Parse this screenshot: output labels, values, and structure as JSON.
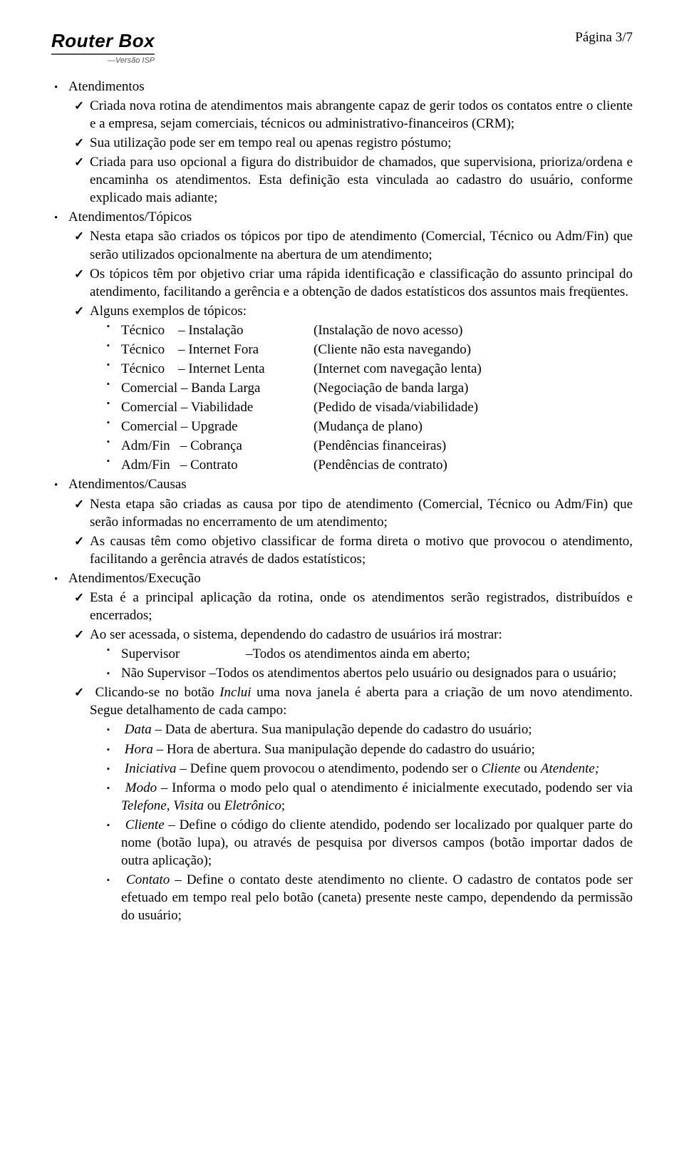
{
  "header": {
    "logo_main": "Router Box",
    "logo_sub": "—Versão ISP",
    "page_num": "Página 3/7"
  },
  "s1": {
    "title": "Atendimentos",
    "p1a": "Criada nova rotina de atendimentos mais abrangente capaz de gerir todos os contatos entre o cliente e a empresa, sejam comerciais, técnicos ou administrativo-financeiros (CRM);",
    "p2a": "Sua utilização pode ser em tempo real ou apenas registro póstumo;",
    "p3a": "Criada para uso opcional a figura do distribuidor de chamados, que supervisiona, prioriza/ordena e encaminha os atendimentos. Esta definição esta vinculada ao cadastro do usuário, conforme explicado mais adiante;"
  },
  "s2": {
    "title": "Atendimentos/Tópicos",
    "p1": "Nesta etapa são criados os tópicos por tipo de atendimento (Comercial, Técnico ou Adm/Fin) que serão utilizados opcionalmente na abertura de um atendimento;",
    "p2": "Os tópicos têm por objetivo criar uma rápida identificação e classificação do assunto principal do atendimento, facilitando a gerência e a obtenção de dados estatísticos dos assuntos mais freqüentes.",
    "p3": "Alguns exemplos de tópicos:",
    "ex": [
      {
        "a": "Técnico    – Instalação",
        "b": "(Instalação de novo acesso)"
      },
      {
        "a": "Técnico    – Internet Fora",
        "b": "(Cliente não esta navegando)"
      },
      {
        "a": "Técnico    – Internet Lenta",
        "b": "(Internet com navegação lenta)"
      },
      {
        "a": "Comercial – Banda Larga",
        "b": "(Negociação de banda larga)"
      },
      {
        "a": "Comercial – Viabilidade",
        "b": "(Pedido de visada/viabilidade)"
      },
      {
        "a": "Comercial – Upgrade",
        "b": "(Mudança de plano)"
      },
      {
        "a": "Adm/Fin   – Cobrança",
        "b": "(Pendências financeiras)"
      },
      {
        "a": "Adm/Fin   – Contrato",
        "b": "(Pendências de contrato)"
      }
    ]
  },
  "s3": {
    "title": "Atendimentos/Causas",
    "p1": "Nesta etapa são criadas as causa por tipo de atendimento (Comercial, Técnico ou Adm/Fin) que serão informadas no encerramento de um atendimento;",
    "p2": "As causas têm como objetivo classificar de forma direta o motivo que provocou o atendimento, facilitando a gerência através de dados estatísticos;"
  },
  "s4": {
    "title": "Atendimentos/Execução",
    "p1": "Esta é a principal aplicação da rotina, onde os atendimentos serão registrados, distribuídos e encerrados;",
    "p2": "Ao ser acessada, o sistema, dependendo do cadastro de usuários irá mostrar:",
    "s4a": {
      "a": "Supervisor",
      "b": "–Todos os atendimentos ainda em aberto;"
    },
    "s4b": "Não Supervisor –Todos os atendimentos abertos pelo usuário ou designados para o usuário;",
    "p3a": "Clicando-se no botão ",
    "p3b": "Inclui",
    "p3c": " uma nova janela é aberta para a criação de um novo atendimento. Segue detalhamento de cada campo:",
    "f1": {
      "a": "Data",
      "b": " – Data de abertura. Sua manipulação depende do cadastro do usuário;"
    },
    "f2": {
      "a": "Hora",
      "b": " – Hora de abertura. Sua manipulação depende do cadastro do usuário;"
    },
    "f3": {
      "a": "Iniciativa",
      "b": " – Define quem provocou o atendimento, podendo ser o ",
      "c": "Cliente",
      "d": " ou ",
      "e": "Atendente;"
    },
    "f4": {
      "a": "Modo",
      "b": " – Informa o modo pelo qual o atendimento é inicialmente executado, podendo ser via ",
      "c": "Telefone",
      "d": ", ",
      "e": "Visita",
      "f": " ou ",
      "g": "Eletrônico",
      "h": ";"
    },
    "f5": {
      "a": "Cliente",
      "b": " – Define o código do cliente atendido, podendo ser localizado por qualquer parte do nome (botão lupa), ou através de pesquisa por diversos campos (botão importar dados de outra aplicação);"
    },
    "f6": {
      "a": "Contato",
      "b": " – Define o contato deste atendimento no cliente. O cadastro de contatos pode ser efetuado em tempo real pelo botão (caneta) presente neste campo, dependendo da permissão do usuário;"
    }
  }
}
